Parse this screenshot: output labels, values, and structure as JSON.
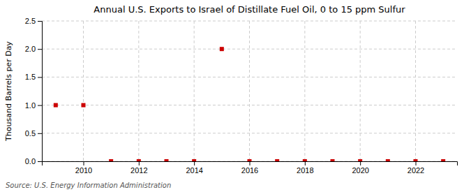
{
  "chart_data": {
    "type": "scatter",
    "title": "Annual U.S. Exports to Israel of Distillate Fuel Oil, 0 to 15 ppm Sulfur",
    "y_label": "Thousand Barrels per Day",
    "annotation": "Source: U.S. Energy Information Administration",
    "x": [
      2009,
      2010,
      2011,
      2012,
      2013,
      2014,
      2015,
      2016,
      2017,
      2018,
      2019,
      2020,
      2021,
      2022,
      2023
    ],
    "values": [
      1.0,
      1.0,
      0.0,
      0.0,
      0.0,
      0.0,
      2.0,
      0.0,
      0.0,
      0.0,
      0.0,
      0.0,
      0.0,
      0.0,
      0.0
    ],
    "color": "#CC0000",
    "marker": "square",
    "xlim": [
      2008.5,
      2023.5
    ],
    "xticks": [
      2010,
      2012,
      2014,
      2016,
      2018,
      2020,
      2022
    ],
    "ylim": [
      0,
      2.5
    ],
    "yticks": [
      {
        "value": 0,
        "label": "0.0"
      },
      0.5,
      {
        "value": 1,
        "label": "1.0"
      },
      1.5,
      {
        "value": 2,
        "label": "2.0"
      },
      2.5
    ],
    "grid": true
  }
}
